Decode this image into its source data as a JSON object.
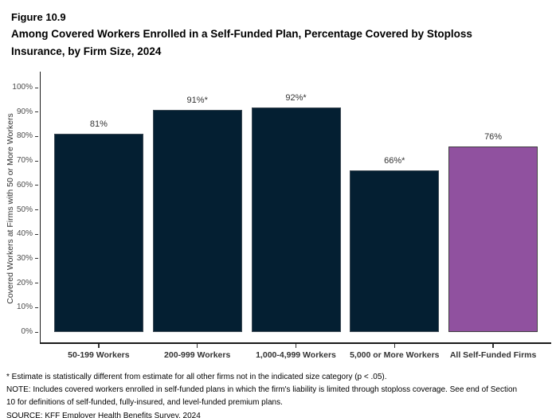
{
  "figure": {
    "label": "Figure 10.9",
    "title": "Among Covered Workers Enrolled in a Self-Funded Plan, Percentage Covered by Stoploss Insurance, by Firm Size, 2024"
  },
  "chart_data": {
    "type": "bar",
    "categories": [
      "50-199 Workers",
      "200-999 Workers",
      "1,000-4,999 Workers",
      "5,000 or More Workers",
      "All Self-Funded Firms"
    ],
    "values": [
      81,
      91,
      92,
      66,
      76
    ],
    "bar_labels": [
      "81%",
      "91%*",
      "92%*",
      "66%*",
      "76%"
    ],
    "title": "Among Covered Workers Enrolled in a Self-Funded Plan, Percentage Covered by Stoploss Insurance, by Firm Size, 2024",
    "xlabel": "",
    "ylabel": "Covered Workers at Firms with 50 or More Workers",
    "ylim": [
      0,
      100
    ],
    "ytick_step": 10,
    "ytick_labels": [
      "0%",
      "10%",
      "20%",
      "30%",
      "40%",
      "50%",
      "60%",
      "70%",
      "80%",
      "90%",
      "100%"
    ],
    "grid": false,
    "legend_position": "none",
    "bar_colors": [
      "#041F32",
      "#041F32",
      "#041F32",
      "#041F32",
      "#90519F"
    ],
    "bar_border_colors": [
      "#3E4A54",
      "#3E4A54",
      "#3E4A54",
      "#3E4A54",
      "#414042"
    ]
  },
  "colors": {
    "navy": "#041F32",
    "purple": "#90519F",
    "axis_line": "#1a1a1a",
    "tick_label": "#4d4d4d",
    "category_label": "#333333",
    "background": "#ffffff"
  },
  "notes": {
    "lines": [
      "* Estimate is statistically different from estimate for all other firms not in the indicated size category (p < .05).",
      "NOTE: Includes covered workers enrolled in self-funded plans in which the firm's liability is limited through stoploss coverage. See end of Section",
      "10 for definitions of self-funded, fully-insured, and level-funded premium plans.",
      "SOURCE: KFF Employer Health Benefits Survey, 2024"
    ]
  }
}
